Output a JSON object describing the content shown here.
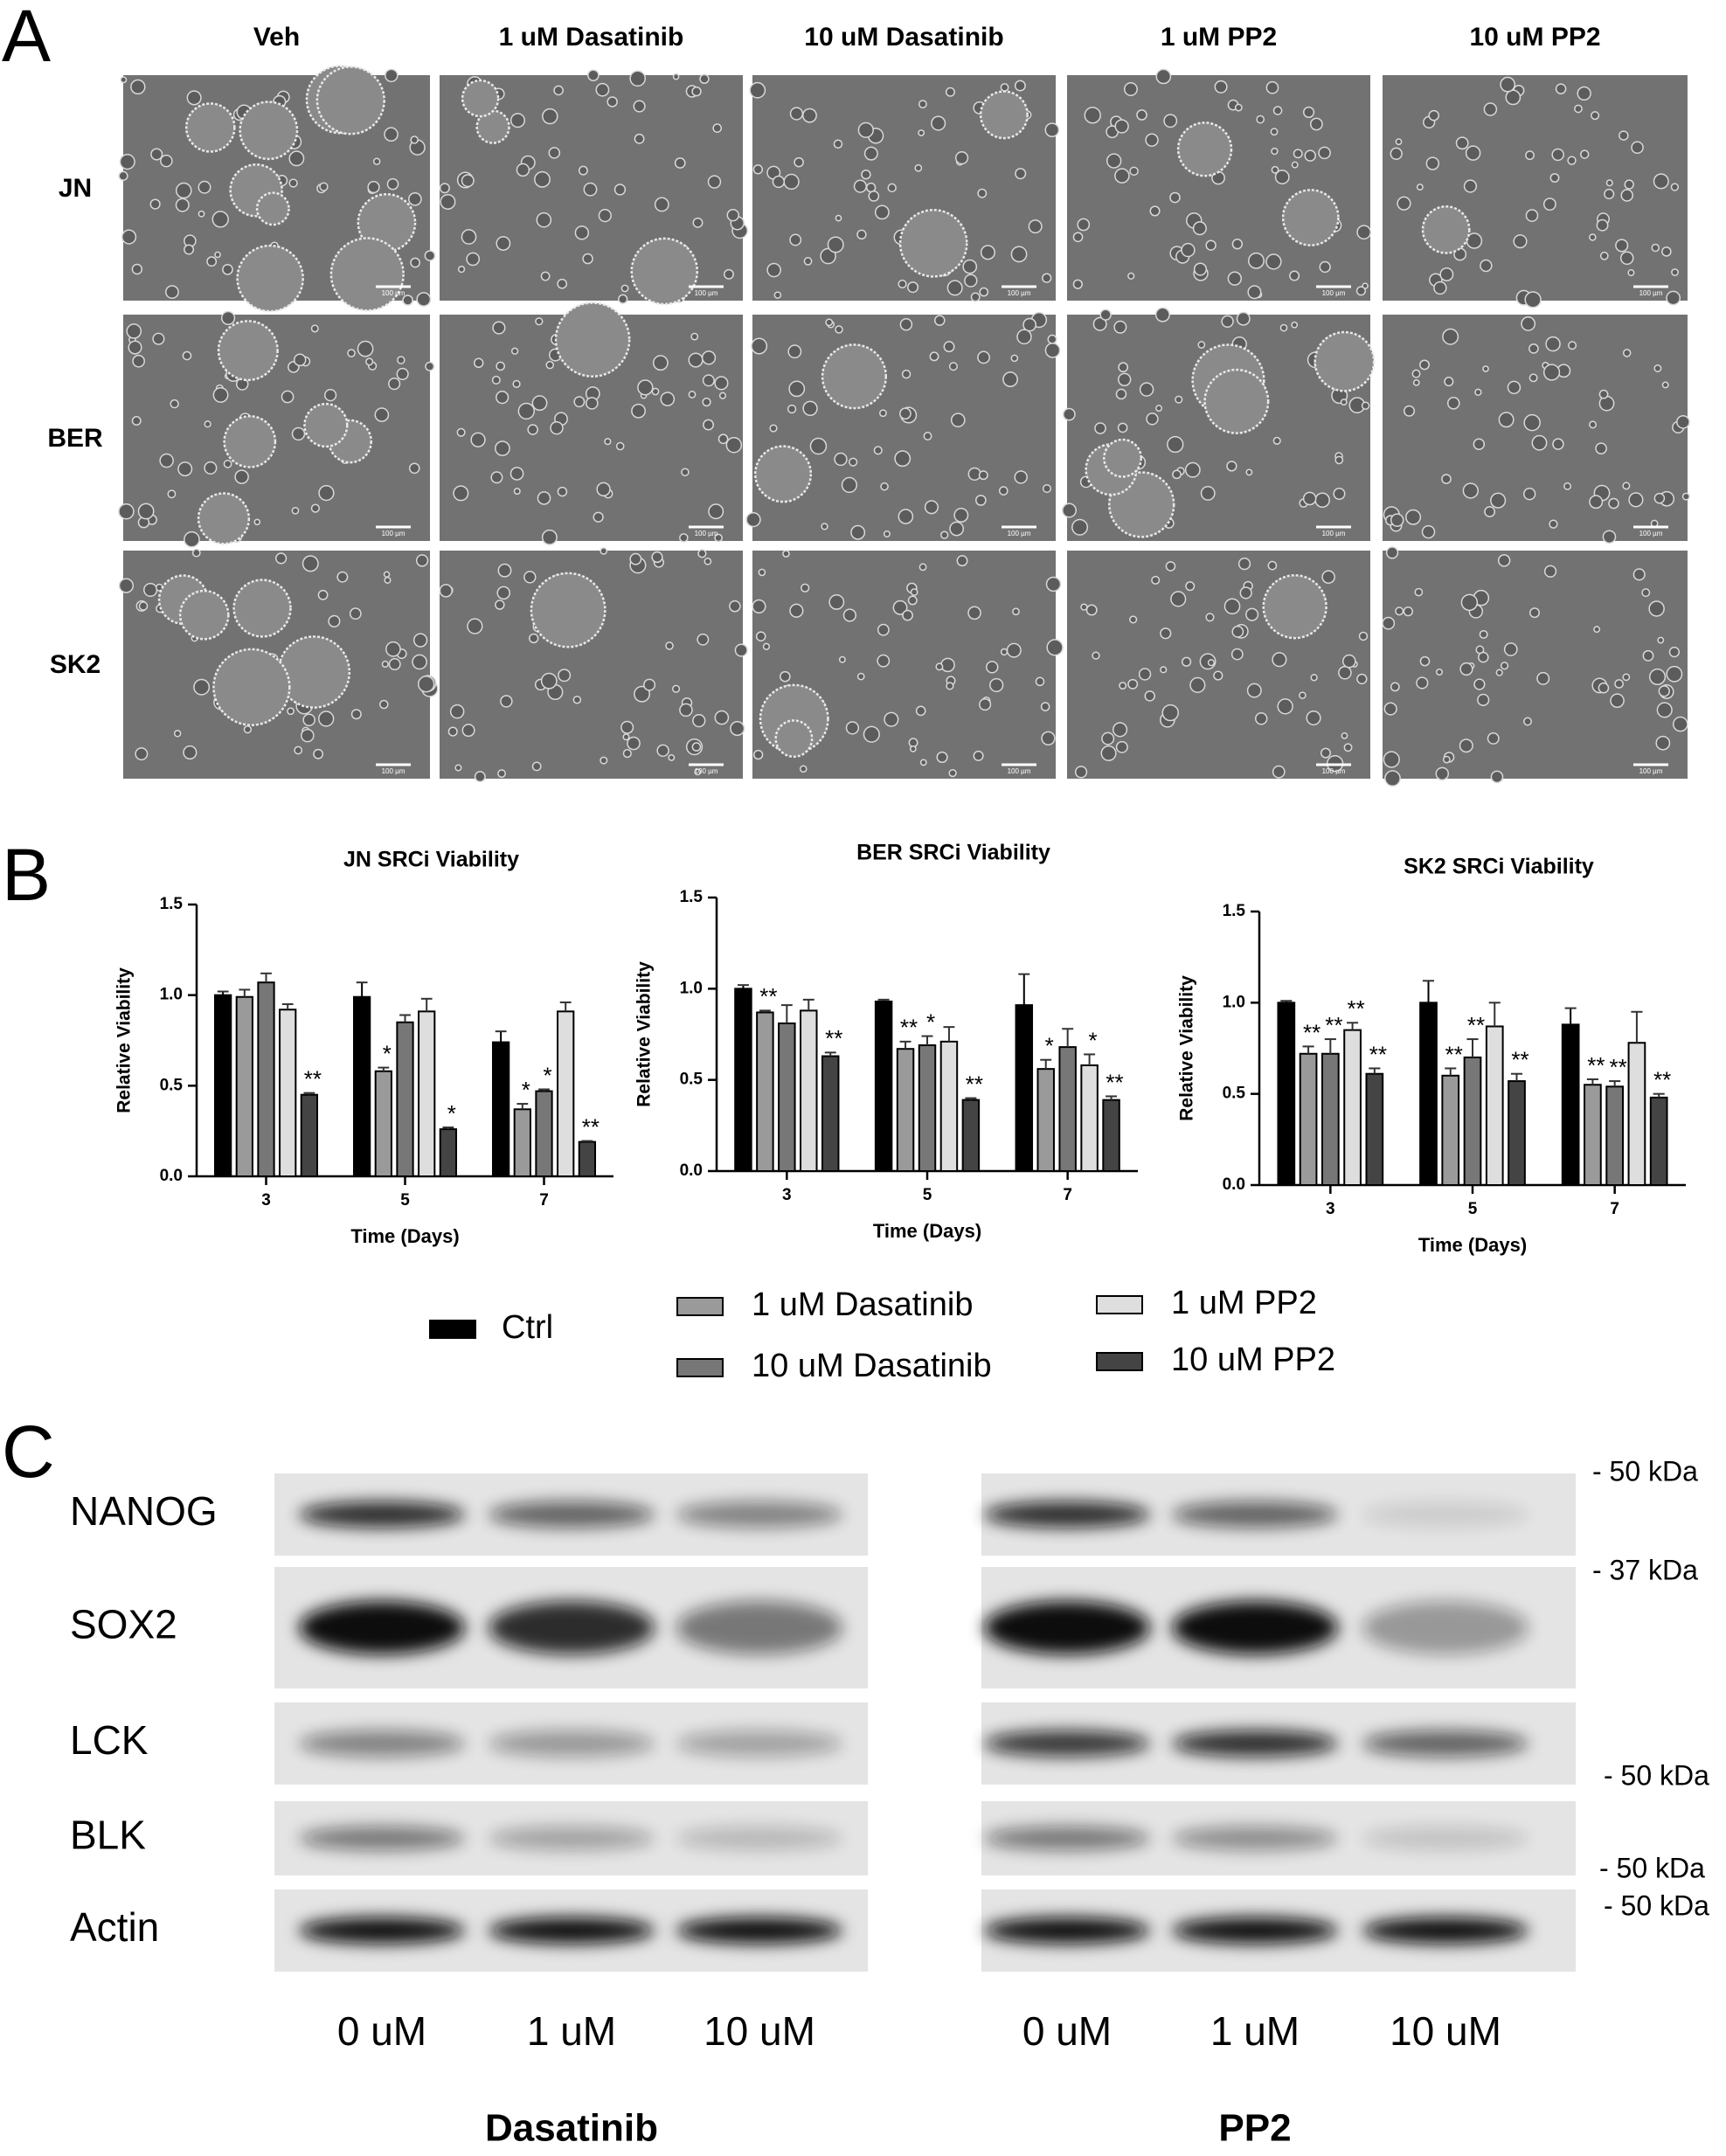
{
  "panel_a": {
    "label": "A",
    "columns": [
      "Veh",
      "1 uM Dasatinib",
      "10 uM Dasatinib",
      "1 uM PP2",
      "10 uM PP2"
    ],
    "rows": [
      "JN",
      "BER",
      "SK2"
    ],
    "scale_bar": "100 µm"
  },
  "panel_b": {
    "label": "B"
  },
  "chart_data": [
    {
      "type": "bar",
      "title": "JN SRCi Viability",
      "y_label": "Relative Viability",
      "x_label": "Time (Days)",
      "categories": [
        "3",
        "5",
        "7"
      ],
      "ylim": [
        0,
        1.5
      ],
      "yticks": [
        {
          "value": 0,
          "label": "0.0"
        },
        0.5,
        {
          "value": 1,
          "label": "1.0"
        },
        1.5
      ],
      "series": [
        {
          "name": "Ctrl",
          "color": "#000000",
          "values": [
            1.0,
            0.99,
            0.74
          ],
          "errors": [
            0.02,
            0.08,
            0.06
          ],
          "annotations": [
            null,
            null,
            null
          ]
        },
        {
          "name": "1 uM Dasatinib",
          "color": "#9a9a9a",
          "values": [
            0.99,
            0.58,
            0.37
          ],
          "errors": [
            0.04,
            0.02,
            0.03
          ],
          "annotations": [
            null,
            "*",
            "*"
          ]
        },
        {
          "name": "10 uM Dasatinib",
          "color": "#777777",
          "values": [
            1.07,
            0.85,
            0.47
          ],
          "errors": [
            0.05,
            0.04,
            0.01
          ],
          "annotations": [
            null,
            null,
            "*"
          ]
        },
        {
          "name": "1 uM PP2",
          "color": "#dedede",
          "values": [
            0.92,
            0.91,
            0.91
          ],
          "errors": [
            0.03,
            0.07,
            0.05
          ],
          "annotations": [
            null,
            null,
            null
          ]
        },
        {
          "name": "10 uM PP2",
          "color": "#444444",
          "values": [
            0.45,
            0.26,
            0.19
          ],
          "errors": [
            0.01,
            0.01,
            0.005
          ],
          "annotations": [
            "**",
            "*",
            "**"
          ]
        }
      ]
    },
    {
      "type": "bar",
      "title": "BER SRCi Viability",
      "y_label": "Relative Viability",
      "x_label": "Time (Days)",
      "categories": [
        "3",
        "5",
        "7"
      ],
      "ylim": [
        0,
        1.5
      ],
      "yticks": [
        {
          "value": 0,
          "label": "0.0"
        },
        0.5,
        {
          "value": 1,
          "label": "1.0"
        },
        1.5
      ],
      "series": [
        {
          "name": "Ctrl",
          "color": "#000000",
          "values": [
            1.0,
            0.93,
            0.91
          ],
          "errors": [
            0.02,
            0.01,
            0.17
          ],
          "annotations": [
            null,
            null,
            null
          ]
        },
        {
          "name": "1 uM Dasatinib",
          "color": "#9a9a9a",
          "values": [
            0.87,
            0.67,
            0.56
          ],
          "errors": [
            0.01,
            0.04,
            0.05
          ],
          "annotations": [
            "**",
            "**",
            "*"
          ]
        },
        {
          "name": "10 uM Dasatinib",
          "color": "#777777",
          "values": [
            0.81,
            0.69,
            0.68
          ],
          "errors": [
            0.1,
            0.05,
            0.1
          ],
          "annotations": [
            null,
            "*",
            null
          ]
        },
        {
          "name": "1 uM PP2",
          "color": "#dedede",
          "values": [
            0.88,
            0.71,
            0.58
          ],
          "errors": [
            0.06,
            0.08,
            0.06
          ],
          "annotations": [
            null,
            null,
            "*"
          ]
        },
        {
          "name": "10 uM PP2",
          "color": "#444444",
          "values": [
            0.63,
            0.39,
            0.39
          ],
          "errors": [
            0.02,
            0.01,
            0.02
          ],
          "annotations": [
            "**",
            "**",
            "**"
          ]
        }
      ]
    },
    {
      "type": "bar",
      "title": "SK2 SRCi Viability",
      "y_label": "Relative Viability",
      "x_label": "Time (Days)",
      "categories": [
        "3",
        "5",
        "7"
      ],
      "ylim": [
        0,
        1.5
      ],
      "yticks": [
        {
          "value": 0,
          "label": "0.0"
        },
        0.5,
        {
          "value": 1,
          "label": "1.0"
        },
        1.5
      ],
      "series": [
        {
          "name": "Ctrl",
          "color": "#000000",
          "values": [
            1.0,
            1.0,
            0.88
          ],
          "errors": [
            0.01,
            0.12,
            0.09
          ],
          "annotations": [
            null,
            null,
            null
          ]
        },
        {
          "name": "1 uM Dasatinib",
          "color": "#9a9a9a",
          "values": [
            0.72,
            0.6,
            0.55
          ],
          "errors": [
            0.04,
            0.04,
            0.03
          ],
          "annotations": [
            "**",
            "**",
            "**"
          ]
        },
        {
          "name": "10 uM Dasatinib",
          "color": "#777777",
          "values": [
            0.72,
            0.7,
            0.54
          ],
          "errors": [
            0.08,
            0.1,
            0.03
          ],
          "annotations": [
            "**",
            "**",
            "**"
          ]
        },
        {
          "name": "1 uM PP2",
          "color": "#dedede",
          "values": [
            0.85,
            0.87,
            0.78
          ],
          "errors": [
            0.04,
            0.13,
            0.17
          ],
          "annotations": [
            "**",
            null,
            null
          ]
        },
        {
          "name": "10 uM PP2",
          "color": "#444444",
          "values": [
            0.61,
            0.57,
            0.48
          ],
          "errors": [
            0.03,
            0.04,
            0.02
          ],
          "annotations": [
            "**",
            "**",
            "**"
          ]
        }
      ]
    }
  ],
  "panel_c": {
    "label": "C",
    "proteins": [
      "NANOG",
      "SOX2",
      "LCK",
      "BLK",
      "Actin"
    ],
    "markers": [
      "- 50 kDa",
      "- 37 kDa",
      "- 50 kDa",
      "- 50 kDa",
      "- 50 kDa"
    ],
    "groups": [
      {
        "drug": "Dasatinib",
        "concentrations": [
          "0 uM",
          "1 uM",
          "10 uM"
        ]
      },
      {
        "drug": "PP2",
        "concentrations": [
          "0 uM",
          "1 uM",
          "10 uM"
        ]
      }
    ]
  }
}
